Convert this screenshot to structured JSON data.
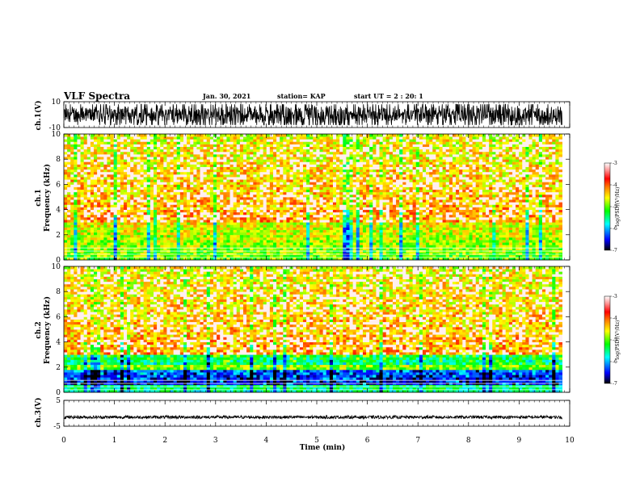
{
  "header": {
    "title": "VLF Spectra",
    "date": "Jan. 30, 2021",
    "station": "station= KAP",
    "start": "start  UT =   2 : 20: 1"
  },
  "chart_data": [
    {
      "type": "line",
      "name": "waveform-ch1",
      "ylabel": "ch.1(V)",
      "ylim": [
        -10,
        10
      ],
      "yticks": [
        "10",
        "-10"
      ],
      "xlim": [
        0,
        10
      ],
      "data_end_min": 9.85,
      "amplitude_range": [
        -8,
        8
      ]
    },
    {
      "type": "heatmap",
      "name": "spectrogram-ch1",
      "ylabel_line1": "ch.1",
      "ylabel_line2": "Frequency  (kHz)",
      "ylim": [
        0,
        10
      ],
      "yticks": [
        "0",
        "2",
        "4",
        "6",
        "8",
        "10"
      ],
      "xlim": [
        0,
        10
      ],
      "data_end_min": 9.85,
      "colorbar": {
        "label": "log(PSD)(V²/Hz)",
        "range": [
          -7,
          -3
        ],
        "ticks": [
          "-3",
          "-4",
          "-5",
          "-6",
          "-7"
        ]
      }
    },
    {
      "type": "heatmap",
      "name": "spectrogram-ch2",
      "ylabel_line1": "ch.2",
      "ylabel_line2": "Frequency  (kHz)",
      "ylim": [
        0,
        10
      ],
      "yticks": [
        "0",
        "2",
        "4",
        "6",
        "8",
        "10"
      ],
      "xlim": [
        0,
        10
      ],
      "data_end_min": 9.85,
      "colorbar": {
        "label": "log(PSD)(V²/Hz)",
        "range": [
          -7,
          -3
        ],
        "ticks": [
          "-3",
          "-4",
          "-5",
          "-6",
          "-7"
        ]
      }
    },
    {
      "type": "line",
      "name": "waveform-ch3",
      "ylabel": "ch.3(V)",
      "ylim": [
        -5,
        5
      ],
      "yticks": [
        "5",
        "-5"
      ],
      "xlim": [
        0,
        10
      ],
      "data_end_min": 9.85,
      "amplitude_range": [
        -0.6,
        0.6
      ],
      "offset": -1.5
    }
  ],
  "xaxis": {
    "label": "Time  (min)",
    "ticks": [
      "0",
      "1",
      "2",
      "3",
      "4",
      "5",
      "6",
      "7",
      "8",
      "9",
      "10"
    ]
  }
}
